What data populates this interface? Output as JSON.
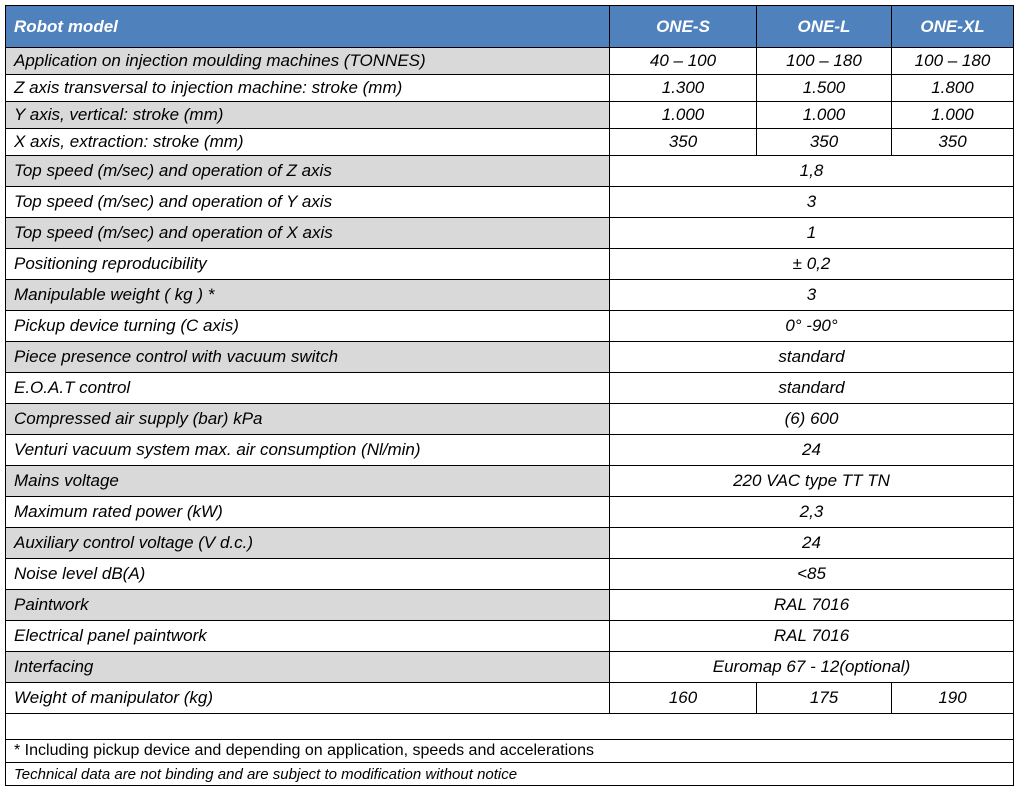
{
  "header": {
    "label": "Robot model",
    "models": [
      "ONE-S",
      "ONE-L",
      "ONE-XL"
    ]
  },
  "rows": [
    {
      "label": "Application on injection moulding machines (TONNES)",
      "values": [
        "40 – 100",
        "100 – 180",
        "100 – 180"
      ]
    },
    {
      "label": "Z axis transversal to injection machine: stroke (mm)",
      "values": [
        "1.300",
        "1.500",
        "1.800"
      ]
    },
    {
      "label": "Y axis, vertical: stroke (mm)",
      "values": [
        "1.000",
        "1.000",
        "1.000"
      ]
    },
    {
      "label": "X axis, extraction: stroke (mm)",
      "values": [
        "350",
        "350",
        "350"
      ]
    },
    {
      "label": "Top speed (m/sec) and operation of Z axis",
      "value": "1,8"
    },
    {
      "label": "Top speed (m/sec) and operation of Y axis",
      "value": "3"
    },
    {
      "label": "Top speed (m/sec) and operation of X axis",
      "value": "1"
    },
    {
      "label": "Positioning reproducibility",
      "value": "± 0,2"
    },
    {
      "label": "Manipulable weight ( kg ) *",
      "value": "3"
    },
    {
      "label": "Pickup device turning (C axis)",
      "value": "0° -90°"
    },
    {
      "label": "Piece presence control with vacuum switch",
      "value": "standard"
    },
    {
      "label": "E.O.A.T control",
      "value": "standard"
    },
    {
      "label": "Compressed air supply (bar) kPa",
      "value": "(6) 600"
    },
    {
      "label": "Venturi vacuum system max. air consumption (Nl/min)",
      "value": "24"
    },
    {
      "label": "Mains voltage",
      "value": "220 VAC  type TT TN"
    },
    {
      "label": "Maximum rated power (kW)",
      "value": "2,3"
    },
    {
      "label": "Auxiliary control voltage (V d.c.)",
      "value": "24"
    },
    {
      "label": "Noise level dB(A)",
      "value": "<85"
    },
    {
      "label": "Paintwork",
      "value": "RAL 7016"
    },
    {
      "label": "Electrical panel paintwork",
      "value": "RAL 7016"
    },
    {
      "label": "Interfacing",
      "value": "Euromap 67  - 12(optional)"
    },
    {
      "label": "Weight of manipulator (kg)",
      "values": [
        "160",
        "175",
        "190"
      ]
    }
  ],
  "footnote": "* Including pickup device and depending on application, speeds and accelerations",
  "disclaimer": "Technical data are not binding and are subject to modification without notice"
}
